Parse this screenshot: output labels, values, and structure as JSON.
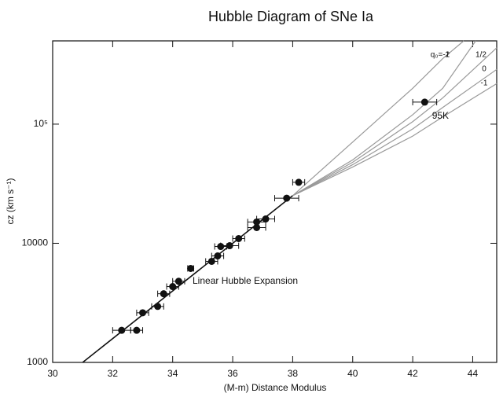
{
  "chart_data": {
    "type": "scatter",
    "title": "Hubble Diagram of SNe Ia",
    "x_label": "(M-m) Distance Modulus",
    "y_label": "cz (km s⁻¹)",
    "log_y": true,
    "xlim": [
      30,
      44.8
    ],
    "xticks": [
      30,
      32,
      34,
      36,
      38,
      40,
      42,
      44
    ],
    "ylim": [
      1000,
      500000
    ],
    "yticks": [
      1000,
      10000,
      {
        "value": 100000,
        "label": "10⁵"
      }
    ],
    "point_color": "#111111",
    "x": [
      32.3,
      32.8,
      33.0,
      33.5,
      33.7,
      34.0,
      34.2,
      34.6,
      35.3,
      35.5,
      35.6,
      35.9,
      36.2,
      36.8,
      36.8,
      37.1,
      37.8,
      38.2,
      42.4
    ],
    "values": [
      1860,
      1860,
      2610,
      2950,
      3770,
      4330,
      4800,
      6150,
      7050,
      7830,
      9400,
      9540,
      10950,
      13550,
      15100,
      16000,
      23900,
      32500,
      153000
    ],
    "x_err": [
      0.3,
      0.2,
      0.2,
      0.2,
      0.2,
      0.2,
      0.2,
      0.1,
      0.2,
      0.2,
      0.2,
      0.3,
      0.2,
      0.3,
      0.3,
      0.3,
      0.4,
      0.2,
      0.4
    ],
    "point_label": "95K",
    "annotation": "Linear Hubble Expansion",
    "lines": [
      {
        "color": "#111111",
        "x": [
          31,
          38
        ],
        "values": [
          1000,
          25100
        ]
      },
      {
        "name": "q₀=-2",
        "color": "#999999",
        "x": [
          38,
          40,
          42,
          43,
          43.7
        ],
        "values": [
          25100,
          70800,
          200000,
          355000,
          500000
        ]
      },
      {
        "name": "1",
        "color": "#999999",
        "x": [
          38,
          40,
          42,
          43,
          44.1
        ],
        "values": [
          25100,
          50100,
          120000,
          200000,
          500000
        ]
      },
      {
        "name": "1/2",
        "color": "#999999",
        "x": [
          38,
          40,
          42,
          43,
          44.8
        ],
        "values": [
          25100,
          47900,
          105000,
          166000,
          437000
        ]
      },
      {
        "name": "0",
        "color": "#999999",
        "x": [
          38,
          40,
          42,
          43,
          44.8
        ],
        "values": [
          25100,
          45700,
          91200,
          138000,
          288000
        ]
      },
      {
        "name": "-1",
        "color": "#999999",
        "x": [
          38,
          40,
          42,
          43,
          44.8
        ],
        "values": [
          25100,
          43700,
          79400,
          115000,
          219000
        ]
      }
    ]
  }
}
